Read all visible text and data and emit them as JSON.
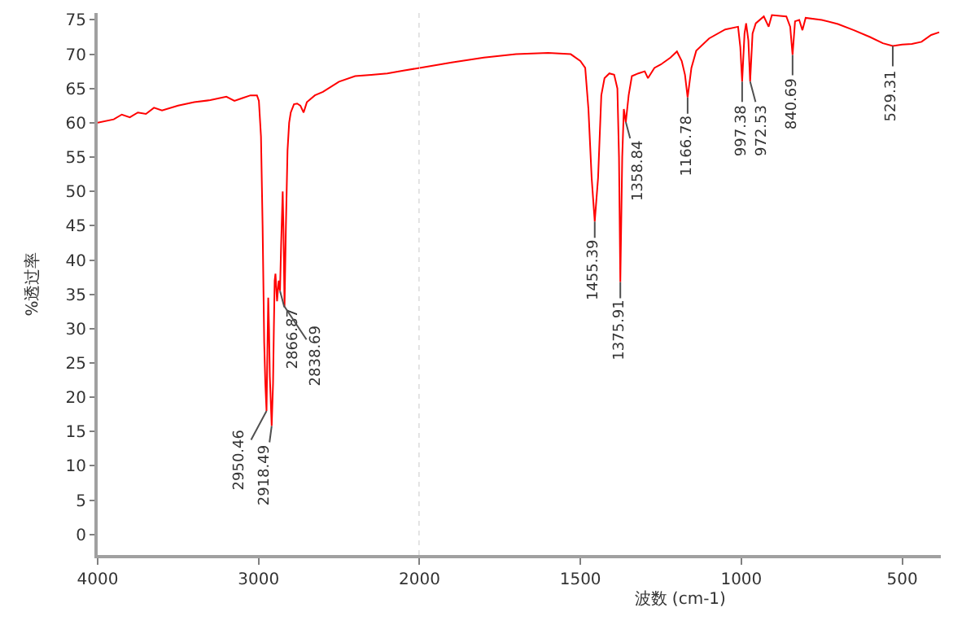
{
  "chart_data": [
    {
      "type": "line",
      "ylabel": "%透过率",
      "xlim": [
        4000,
        2000
      ],
      "xticks": [
        4000,
        3000,
        2000
      ],
      "ylim": [
        -3,
        76
      ],
      "yticks": [
        0,
        5,
        10,
        15,
        20,
        25,
        30,
        35,
        40,
        45,
        50,
        55,
        60,
        65,
        70,
        75
      ],
      "marker": "none",
      "line_style": "solid",
      "x": [
        4000,
        3900,
        3850,
        3800,
        3750,
        3700,
        3650,
        3600,
        3500,
        3400,
        3300,
        3200,
        3150,
        3100,
        3050,
        3010,
        2998,
        2985,
        2975,
        2965,
        2958,
        2950.46,
        2945,
        2940,
        2935,
        2930,
        2925,
        2918.49,
        2910,
        2905,
        2900,
        2895,
        2885,
        2875,
        2866.87,
        2860,
        2850,
        2845,
        2838.69,
        2830,
        2820,
        2810,
        2800,
        2780,
        2760,
        2740,
        2720,
        2700,
        2650,
        2600,
        2500,
        2400,
        2300,
        2200,
        2100,
        2000
      ],
      "series": [
        {
          "color": "#ff0000",
          "values": [
            60,
            60.5,
            61.2,
            60.8,
            61.5,
            61.3,
            62.2,
            61.8,
            62.5,
            63,
            63.3,
            63.8,
            63.2,
            63.6,
            64,
            64,
            63.2,
            58,
            45,
            28,
            22,
            18,
            27,
            34.5,
            30,
            23,
            20,
            15.8,
            22,
            30,
            37,
            38,
            34,
            37,
            35.5,
            42,
            50,
            44,
            33.2,
            45,
            56,
            60,
            61.5,
            62.7,
            62.8,
            62.5,
            61.5,
            63,
            64,
            64.5,
            66,
            66.8,
            67,
            67.2,
            67.6,
            68
          ]
        }
      ],
      "ref_lines": [
        {
          "axis": "x",
          "value": 2000,
          "color": "#c8c8c8",
          "line_style": "dotted"
        }
      ],
      "annotations": [
        {
          "text": "2950.46",
          "x": 2950.46,
          "y": 18
        },
        {
          "text": "2918.49",
          "x": 2918.49,
          "y": 15.8
        },
        {
          "text": "2866.87",
          "x": 2866.87,
          "y": 35.5
        },
        {
          "text": "2838.69",
          "x": 2838.69,
          "y": 33.2
        }
      ]
    },
    {
      "type": "line",
      "xlabel": "波数 (cm-1)",
      "xlim": [
        2000,
        380
      ],
      "xticks": [
        1500,
        1000,
        500
      ],
      "ylim": [
        -3,
        76
      ],
      "yticks": [
        0,
        5,
        10,
        15,
        20,
        25,
        30,
        35,
        40,
        45,
        50,
        55,
        60,
        65,
        70,
        75
      ],
      "tick_labels": "x",
      "marker": "none",
      "line_style": "solid",
      "x": [
        2000,
        1900,
        1800,
        1700,
        1600,
        1530,
        1500,
        1485,
        1475,
        1465,
        1455.39,
        1445,
        1435,
        1425,
        1410,
        1395,
        1385,
        1380,
        1375.91,
        1370,
        1365,
        1358.84,
        1350,
        1340,
        1320,
        1300,
        1290,
        1270,
        1250,
        1220,
        1200,
        1185,
        1175,
        1166.78,
        1155,
        1140,
        1100,
        1050,
        1010,
        1003,
        997.38,
        990,
        985,
        978,
        972.53,
        965,
        955,
        930,
        915,
        905,
        880,
        860,
        848,
        840.69,
        833,
        820,
        810,
        800,
        750,
        700,
        650,
        600,
        560,
        529.31,
        500,
        470,
        440,
        410,
        385
      ],
      "series": [
        {
          "color": "#ff0000",
          "values": [
            68,
            68.8,
            69.5,
            70,
            70.2,
            70,
            69,
            68,
            62,
            52,
            45.6,
            52,
            64,
            66.5,
            67.2,
            67,
            65,
            55,
            36.8,
            55,
            62,
            60.1,
            64,
            66.8,
            67.2,
            67.5,
            66.5,
            68,
            68.5,
            69.5,
            70.4,
            69,
            67,
            63.7,
            68,
            70.5,
            72.3,
            73.6,
            74,
            71,
            66,
            73,
            74.5,
            72,
            66,
            73,
            74.5,
            75.5,
            74,
            75.7,
            75.6,
            75.5,
            74,
            69.9,
            74.8,
            75,
            73.5,
            75.3,
            75,
            74.4,
            73.5,
            72.5,
            71.6,
            71.2,
            71.4,
            71.5,
            71.8,
            72.8,
            73.2
          ]
        }
      ],
      "annotations": [
        {
          "text": "1455.39",
          "x": 1455.39,
          "y": 45.6
        },
        {
          "text": "1375.91",
          "x": 1375.91,
          "y": 36.8
        },
        {
          "text": "1358.84",
          "x": 1358.84,
          "y": 60.1
        },
        {
          "text": "1166.78",
          "x": 1166.78,
          "y": 63.7
        },
        {
          "text": "997.38",
          "x": 997.38,
          "y": 66
        },
        {
          "text": "972.53",
          "x": 972.53,
          "y": 66
        },
        {
          "text": "840.69",
          "x": 840.69,
          "y": 69.9
        },
        {
          "text": "529.31",
          "x": 529.31,
          "y": 71.2
        }
      ]
    }
  ]
}
